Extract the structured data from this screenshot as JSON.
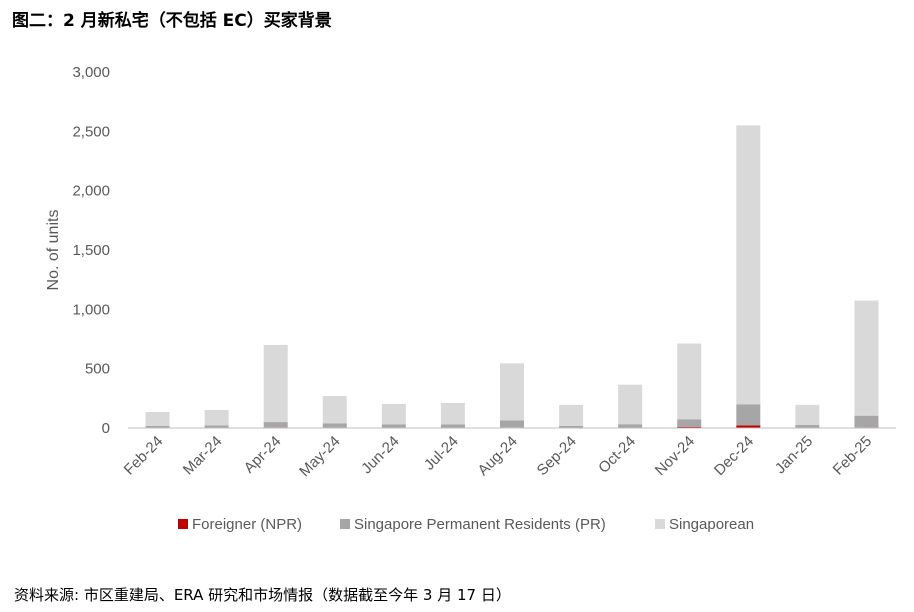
{
  "title": "图二：2 月新私宅（不包括 EC）买家背景",
  "source": "资料来源: 市区重建局、ERA 研究和市场情报（数据截至今年 3 月 17 日）",
  "chart_data": {
    "type": "bar",
    "stacked": true,
    "categories": [
      "Feb-24",
      "Mar-24",
      "Apr-24",
      "May-24",
      "Jun-24",
      "Jul-24",
      "Aug-24",
      "Sep-24",
      "Oct-24",
      "Nov-24",
      "Dec-24",
      "Jan-25",
      "Feb-25"
    ],
    "ylabel": "No. of units",
    "ylim": [
      0,
      3000
    ],
    "yticks": [
      0,
      500,
      1000,
      1500,
      2000,
      2500,
      3000
    ],
    "ytick_labels": [
      "0",
      "500",
      "1,000",
      "1,500",
      "2,000",
      "2,500",
      "3,000"
    ],
    "grid": false,
    "legend_position": "bottom",
    "series": [
      {
        "name": "Foreigner (NPR)",
        "color": "#c00000",
        "values": [
          3,
          4,
          6,
          4,
          3,
          3,
          5,
          2,
          4,
          10,
          22,
          3,
          6
        ]
      },
      {
        "name": "Singapore Permanent Residents (PR)",
        "color": "#a6a6a6",
        "values": [
          14,
          18,
          44,
          34,
          27,
          27,
          58,
          16,
          28,
          64,
          178,
          22,
          98
        ]
      },
      {
        "name": "Singaporean",
        "color": "#d9d9d9",
        "values": [
          118,
          130,
          650,
          232,
          173,
          182,
          482,
          177,
          333,
          638,
          2350,
          170,
          970
        ]
      }
    ]
  }
}
